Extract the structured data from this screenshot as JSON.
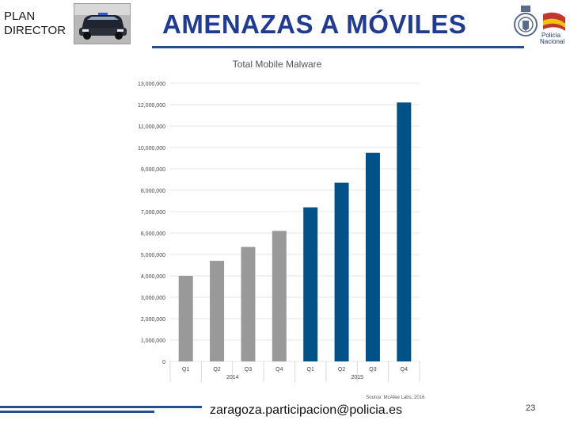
{
  "header": {
    "plan_line1": "PLAN",
    "plan_line2": "DIRECTOR",
    "title": "AMENAZAS A MÓVILES",
    "logo_text_1": "Policía",
    "logo_text_2": "Nacional"
  },
  "colors": {
    "title": "#1f3b93",
    "bar_2014": "#999999",
    "bar_2015": "#005288"
  },
  "chart_data": {
    "type": "bar",
    "title": "Total Mobile Malware",
    "categories": [
      "Q1",
      "Q2",
      "Q3",
      "Q4",
      "Q1",
      "Q2",
      "Q3",
      "Q4"
    ],
    "groups": [
      {
        "label": "2014",
        "categories": [
          "Q1",
          "Q2",
          "Q3",
          "Q4"
        ]
      },
      {
        "label": "2015",
        "categories": [
          "Q1",
          "Q2",
          "Q3",
          "Q4"
        ]
      }
    ],
    "values": [
      4000000,
      4700000,
      5350000,
      6100000,
      7200000,
      8350000,
      9750000,
      12100000
    ],
    "ylim": [
      0,
      13000000
    ],
    "yticks": [
      "0",
      "1,000,000",
      "2,000,000",
      "3,000,000",
      "4,000,000",
      "5,000,000",
      "6,000,000",
      "7,000,000",
      "8,000,000",
      "9,000,000",
      "10,000,000",
      "11,000,000",
      "12,000,000",
      "13,000,000"
    ],
    "grid": true,
    "source": "Source: McAfee Labs, 2016."
  },
  "footer": {
    "email": "zaragoza.participacion@policia.es",
    "page_number": "23"
  }
}
